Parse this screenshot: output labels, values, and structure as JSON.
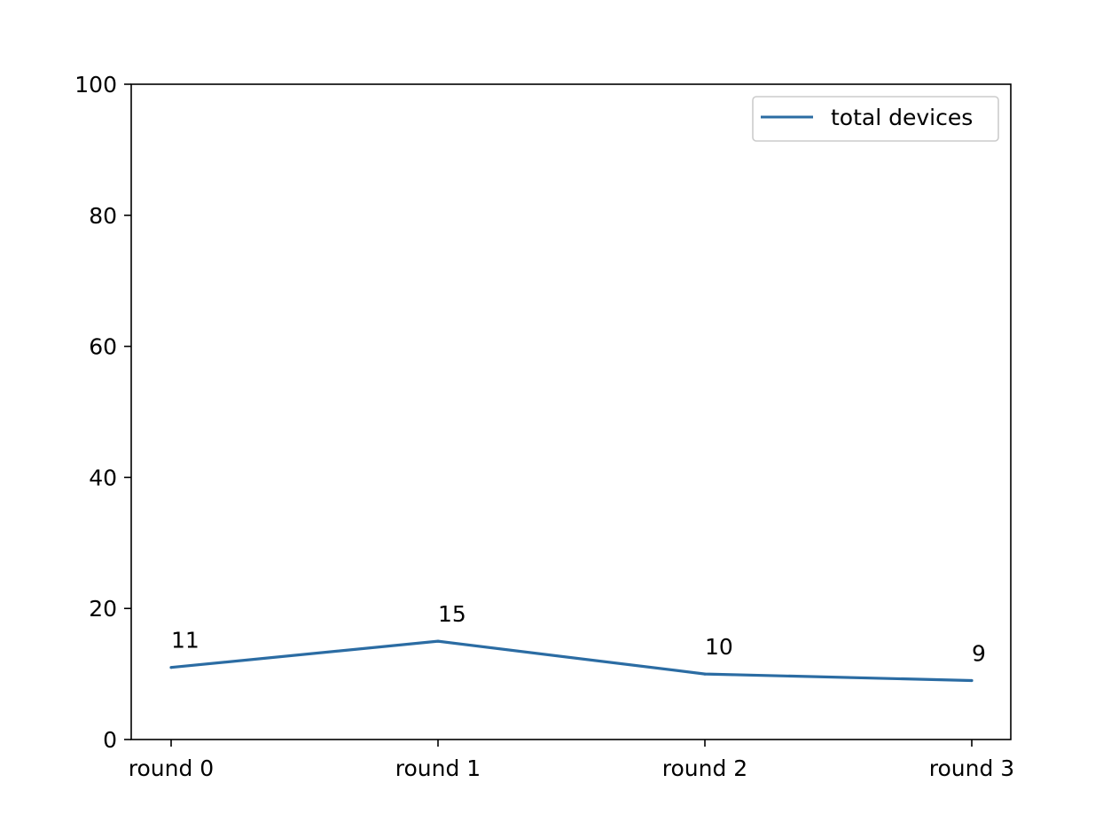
{
  "chart_data": {
    "type": "line",
    "categories": [
      "round 0",
      "round 1",
      "round 2",
      "round 3"
    ],
    "series": [
      {
        "name": "total devices",
        "values": [
          11,
          15,
          10,
          9
        ],
        "color": "#2b6ca3",
        "data_labels": [
          "11",
          "15",
          "10",
          "9"
        ]
      }
    ],
    "ylim": [
      0,
      100
    ],
    "yticks": [
      0,
      20,
      40,
      60,
      80,
      100
    ],
    "ytick_labels": [
      "0",
      "20",
      "40",
      "60",
      "80",
      "100"
    ],
    "grid": false,
    "legend": {
      "placement": "top-right"
    }
  }
}
